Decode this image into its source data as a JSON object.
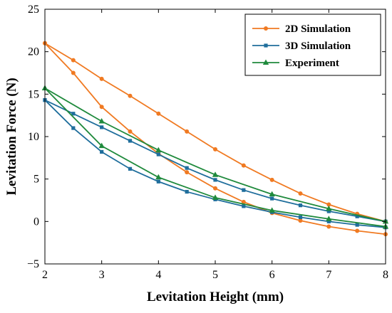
{
  "chart_data": {
    "type": "line",
    "xlabel": "Levitation Height (mm)",
    "ylabel": "Levitation Force (N)",
    "xlim": [
      2,
      8
    ],
    "ylim": [
      -5,
      25
    ],
    "xticks": [
      2,
      3,
      4,
      5,
      6,
      7,
      8
    ],
    "yticks": [
      -5,
      0,
      5,
      10,
      15,
      20,
      25
    ],
    "grid": false,
    "legend_position": "top-right",
    "series": [
      {
        "name": "2D Simulation",
        "color": "#F07A22",
        "marker": "circle",
        "branches": [
          {
            "x": [
              2,
              2.5,
              3,
              3.5,
              4,
              4.5,
              5,
              5.5,
              6,
              6.5,
              7,
              7.5,
              8
            ],
            "y": [
              21.0,
              19.0,
              16.8,
              14.8,
              12.7,
              10.6,
              8.5,
              6.6,
              4.9,
              3.3,
              2.0,
              0.9,
              0.0
            ]
          },
          {
            "x": [
              2,
              2.5,
              3,
              3.5,
              4,
              4.5,
              5,
              5.5,
              6,
              6.5,
              7,
              7.5,
              8
            ],
            "y": [
              21.0,
              17.5,
              13.5,
              10.6,
              8.0,
              5.8,
              3.9,
              2.3,
              1.0,
              0.1,
              -0.6,
              -1.1,
              -1.5
            ]
          }
        ]
      },
      {
        "name": "3D Simulation",
        "color": "#1F6E9C",
        "marker": "square",
        "branches": [
          {
            "x": [
              2,
              2.5,
              3,
              3.5,
              4,
              4.5,
              5,
              5.5,
              6,
              6.5,
              7,
              7.5,
              8
            ],
            "y": [
              14.3,
              12.7,
              11.1,
              9.5,
              7.9,
              6.3,
              4.9,
              3.7,
              2.7,
              1.9,
              1.2,
              0.6,
              0.0
            ]
          },
          {
            "x": [
              2,
              2.5,
              3,
              3.5,
              4,
              4.5,
              5,
              5.5,
              6,
              6.5,
              7,
              7.5,
              8
            ],
            "y": [
              14.3,
              11.0,
              8.2,
              6.2,
              4.7,
              3.5,
              2.6,
              1.8,
              1.1,
              0.5,
              0.0,
              -0.4,
              -0.7
            ]
          }
        ]
      },
      {
        "name": "Experiment",
        "color": "#1F8A3C",
        "marker": "triangle",
        "branches": [
          {
            "x": [
              2,
              3,
              4,
              5,
              6,
              7,
              8
            ],
            "y": [
              15.7,
              11.8,
              8.4,
              5.5,
              3.2,
              1.5,
              0.0
            ]
          },
          {
            "x": [
              2,
              3,
              4,
              5,
              6,
              7,
              8
            ],
            "y": [
              15.7,
              8.9,
              5.2,
              2.8,
              1.3,
              0.3,
              -0.6
            ]
          }
        ]
      }
    ]
  }
}
